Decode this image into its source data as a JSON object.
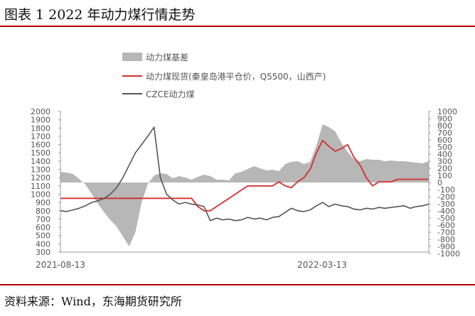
{
  "header": {
    "title": "图表 1 2022 年动力煤行情走势"
  },
  "footer": {
    "source": "资料来源：Wind，东海期货研究所"
  },
  "chart_data": {
    "type": "line",
    "x_tick_labels": [
      "2021-08-13",
      "2022-03-13"
    ],
    "left_axis": {
      "ylim": [
        300,
        2000
      ],
      "ticks": [
        300,
        400,
        500,
        600,
        700,
        800,
        900,
        1000,
        1100,
        1200,
        1300,
        1400,
        1500,
        1600,
        1700,
        1800,
        1900,
        2000
      ]
    },
    "right_axis": {
      "ylim": [
        -1000,
        1000
      ],
      "ticks": [
        -1000,
        -900,
        -800,
        -700,
        -600,
        -500,
        -400,
        -300,
        -200,
        -100,
        0,
        100,
        200,
        300,
        400,
        500,
        600,
        700,
        800,
        900,
        1000
      ]
    },
    "legend": {
      "position": "top"
    },
    "series": [
      {
        "name": "动力煤基差",
        "kind": "area",
        "axis": "right",
        "color": "#b7b7b7",
        "values": [
          150,
          140,
          120,
          50,
          -30,
          -160,
          -300,
          -420,
          -530,
          -620,
          -760,
          -900,
          -700,
          -280,
          -20,
          100,
          130,
          120,
          60,
          90,
          70,
          40,
          80,
          110,
          90,
          40,
          40,
          30,
          130,
          150,
          190,
          230,
          200,
          170,
          180,
          160,
          260,
          290,
          300,
          260,
          290,
          520,
          820,
          780,
          720,
          560,
          430,
          330,
          300,
          330,
          320,
          320,
          300,
          310,
          300,
          300,
          290,
          280,
          270,
          300
        ]
      },
      {
        "name": "动力煤现货(秦皇岛港平仓价，Q5500，山西产)",
        "kind": "line",
        "axis": "left",
        "color": "#d32f2f",
        "values": [
          950,
          950,
          950,
          950,
          950,
          950,
          950,
          950,
          950,
          950,
          950,
          950,
          950,
          950,
          950,
          950,
          950,
          950,
          950,
          950,
          950,
          950,
          850,
          800,
          800,
          850,
          900,
          950,
          1000,
          1050,
          1100,
          1100,
          1100,
          1100,
          1100,
          1150,
          1100,
          1080,
          1150,
          1200,
          1300,
          1500,
          1650,
          1580,
          1520,
          1550,
          1600,
          1450,
          1350,
          1200,
          1100,
          1150,
          1150,
          1150,
          1180,
          1180,
          1180,
          1180,
          1180,
          1180
        ]
      },
      {
        "name": "CZCE动力煤",
        "kind": "line",
        "axis": "left",
        "color": "#555555",
        "values": [
          800,
          790,
          810,
          830,
          860,
          900,
          920,
          950,
          1000,
          1080,
          1200,
          1350,
          1500,
          1600,
          1700,
          1810,
          1200,
          1000,
          930,
          880,
          900,
          880,
          870,
          850,
          680,
          710,
          690,
          700,
          680,
          690,
          720,
          700,
          710,
          690,
          720,
          730,
          780,
          830,
          800,
          790,
          810,
          860,
          900,
          850,
          880,
          860,
          850,
          820,
          810,
          830,
          820,
          840,
          830,
          840,
          850,
          860,
          830,
          850,
          860,
          880
        ]
      }
    ]
  }
}
